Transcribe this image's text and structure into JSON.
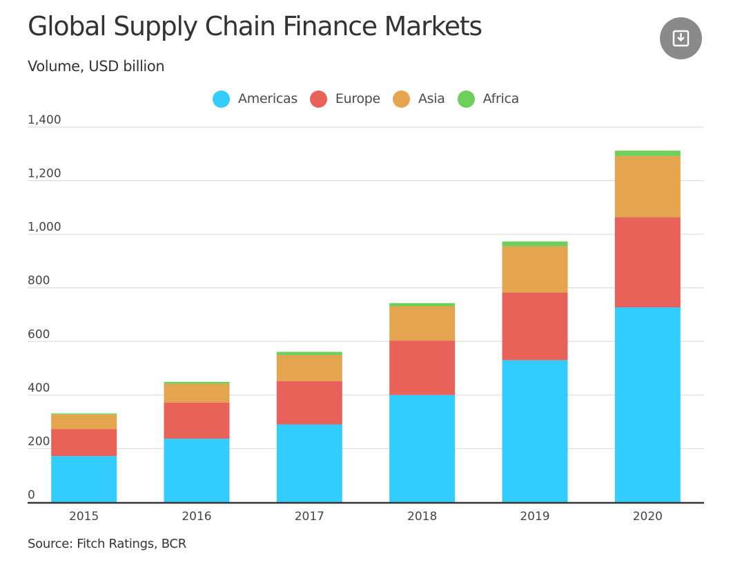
{
  "header": {
    "title": "Global Supply Chain Finance Markets",
    "subtitle": "Volume, USD billion"
  },
  "toolbar": {
    "download_icon": "download-icon"
  },
  "footer": {
    "source": "Source: Fitch Ratings, BCR"
  },
  "chart_data": {
    "type": "bar",
    "stacked": true,
    "categories": [
      "2015",
      "2016",
      "2017",
      "2018",
      "2019",
      "2020"
    ],
    "series": [
      {
        "name": "Americas",
        "color": "#33ccff",
        "values": [
          172,
          237,
          290,
          400,
          530,
          727
        ]
      },
      {
        "name": "Europe",
        "color": "#e8625a",
        "values": [
          100,
          135,
          162,
          203,
          253,
          337
        ]
      },
      {
        "name": "Asia",
        "color": "#e5a54f",
        "values": [
          55,
          70,
          97,
          128,
          172,
          228
        ]
      },
      {
        "name": "Africa",
        "color": "#6fcf5b",
        "values": [
          4,
          7,
          12,
          12,
          18,
          20
        ]
      }
    ],
    "ylim": [
      0,
      1400
    ],
    "yticks": [
      0,
      200,
      400,
      600,
      800,
      1000,
      1200,
      1400
    ],
    "ytick_labels": [
      "0",
      "200",
      "400",
      "600",
      "800",
      "1,000",
      "1,200",
      "1,400"
    ],
    "grid": true,
    "legend": "top-center"
  }
}
